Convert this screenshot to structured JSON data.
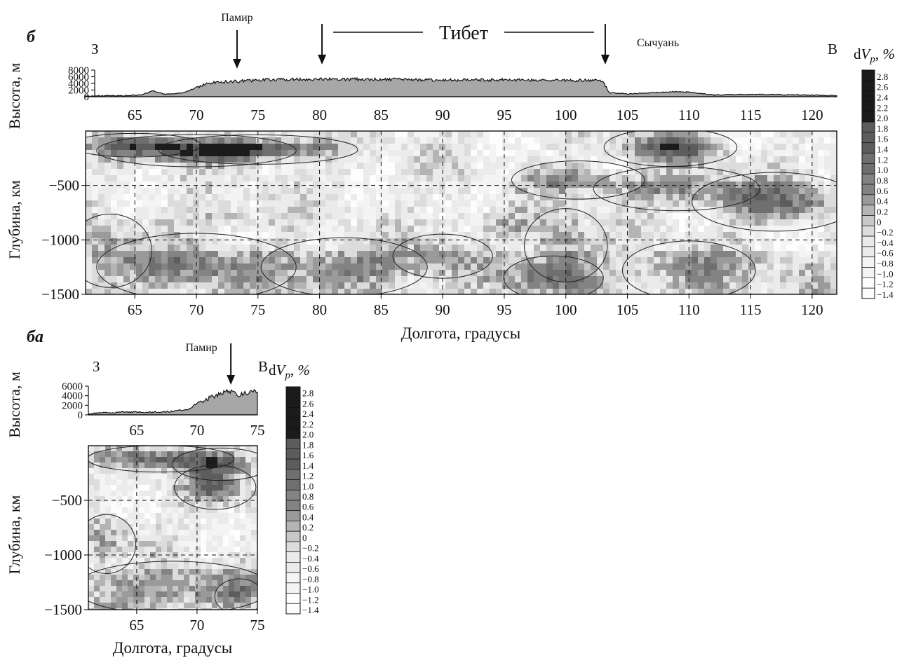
{
  "chart_data": [
    {
      "type": "heatmap",
      "panel_label": "б",
      "direction_west": "З",
      "direction_east": "В",
      "regions": {
        "pamir": {
          "label": "Памир",
          "lon": 73.3
        },
        "tibet": {
          "label": "Тибет",
          "from_lon": 80.2,
          "to_lon": 103.2
        },
        "sichuan": {
          "label": "Сычуань"
        }
      },
      "elevation": {
        "ylabel": "Высота, м",
        "ylim": [
          0,
          8000
        ],
        "yticks": [
          0,
          2000,
          4000,
          6000,
          8000
        ],
        "profile": [
          [
            61,
            200
          ],
          [
            64,
            300
          ],
          [
            65.5,
            500
          ],
          [
            66.5,
            1800
          ],
          [
            67.5,
            700
          ],
          [
            69,
            1200
          ],
          [
            69.8,
            2400
          ],
          [
            70.5,
            3500
          ],
          [
            71.5,
            4300
          ],
          [
            73,
            4600
          ],
          [
            76,
            5100
          ],
          [
            80,
            5300
          ],
          [
            85,
            5200
          ],
          [
            90,
            5000
          ],
          [
            95,
            5100
          ],
          [
            100,
            4900
          ],
          [
            103,
            4900
          ],
          [
            103.5,
            1200
          ],
          [
            105,
            800
          ],
          [
            107,
            1200
          ],
          [
            109,
            1500
          ],
          [
            110.5,
            1200
          ],
          [
            112,
            500
          ],
          [
            115,
            700
          ],
          [
            118,
            600
          ],
          [
            121,
            400
          ],
          [
            122,
            300
          ]
        ]
      },
      "xlabel": "Долгота, градусы",
      "ylabel": "Глубина, км",
      "xlim": [
        61,
        122
      ],
      "xticks": [
        65,
        70,
        75,
        80,
        85,
        90,
        95,
        100,
        105,
        110,
        115,
        120
      ],
      "ylim": [
        -1500,
        0
      ],
      "yticks": [
        -500,
        -1000,
        -1500
      ],
      "grid": "dashed",
      "colorbar_label": "dVp, %",
      "colorbar_ticks": [
        2.8,
        2.6,
        2.4,
        2.2,
        2.0,
        1.8,
        1.6,
        1.4,
        1.2,
        1.0,
        0.8,
        0.6,
        0.4,
        0.2,
        0,
        -0.2,
        -0.4,
        -0.6,
        -0.8,
        -1.0,
        -1.2,
        -1.4
      ],
      "anomalies": [
        {
          "lon": 70,
          "depth": -180,
          "rlon": 6,
          "rdepth": 110,
          "dvp": 1.4
        },
        {
          "lon": 75,
          "depth": -170,
          "rlon": 6,
          "rdepth": 100,
          "dvp": 1.5
        },
        {
          "lon": 65,
          "depth": -130,
          "rlon": 4,
          "rdepth": 80,
          "dvp": 0.9
        },
        {
          "lon": 108.5,
          "depth": -150,
          "rlon": 4,
          "rdepth": 130,
          "dvp": 1.6
        },
        {
          "lon": 101,
          "depth": -450,
          "rlon": 4,
          "rdepth": 130,
          "dvp": 0.8
        },
        {
          "lon": 117,
          "depth": -650,
          "rlon": 5,
          "rdepth": 200,
          "dvp": 1.1
        },
        {
          "lon": 109,
          "depth": -530,
          "rlon": 5,
          "rdepth": 150,
          "dvp": 0.8
        },
        {
          "lon": 100,
          "depth": -1050,
          "rlon": 2.5,
          "rdepth": 250,
          "dvp": 0.7
        },
        {
          "lon": 99,
          "depth": -1350,
          "rlon": 3,
          "rdepth": 150,
          "dvp": 0.8
        },
        {
          "lon": 82,
          "depth": -1250,
          "rlon": 5,
          "rdepth": 200,
          "dvp": 0.5
        },
        {
          "lon": 70,
          "depth": -1250,
          "rlon": 6,
          "rdepth": 230,
          "dvp": 0.4
        },
        {
          "lon": 63,
          "depth": -1100,
          "rlon": 2.5,
          "rdepth": 250,
          "dvp": 0.4
        },
        {
          "lon": 90,
          "depth": -1150,
          "rlon": 3,
          "rdepth": 150,
          "dvp": 0.3
        },
        {
          "lon": 110,
          "depth": -1280,
          "rlon": 4,
          "rdepth": 200,
          "dvp": 0.3
        },
        {
          "lon": 95,
          "depth": -850,
          "rlon": 4,
          "rdepth": 120,
          "dvp": 0.2
        },
        {
          "lon": 72,
          "depth": -800,
          "rlon": 4,
          "rdepth": 100,
          "dvp": 0.25
        }
      ]
    },
    {
      "type": "heatmap",
      "panel_label": "бa",
      "direction_west": "З",
      "direction_east": "В",
      "regions": {
        "pamir": {
          "label": "Памир",
          "lon": 72.8
        }
      },
      "elevation": {
        "ylabel": "Высота, м",
        "ylim": [
          0,
          6000
        ],
        "yticks": [
          0,
          2000,
          4000,
          6000
        ],
        "profile": [
          [
            61,
            200
          ],
          [
            62,
            400
          ],
          [
            64,
            600
          ],
          [
            66,
            500
          ],
          [
            68,
            700
          ],
          [
            69.3,
            1200
          ],
          [
            70,
            2400
          ],
          [
            71,
            3500
          ],
          [
            72.5,
            5000
          ],
          [
            73.5,
            4200
          ],
          [
            75,
            5000
          ]
        ]
      },
      "xlabel": "Долгота, градусы",
      "ylabel": "Глубина, км",
      "xlim": [
        61,
        75
      ],
      "xticks": [
        65,
        70,
        75
      ],
      "ylim": [
        -1500,
        0
      ],
      "yticks": [
        -500,
        -1000,
        -1500
      ],
      "grid": "dashed",
      "colorbar_label": "dVp, %",
      "colorbar_ticks": [
        2.8,
        2.6,
        2.4,
        2.2,
        2.0,
        1.8,
        1.6,
        1.4,
        1.2,
        1.0,
        0.8,
        0.6,
        0.4,
        0.2,
        0,
        -0.2,
        -0.4,
        -0.6,
        -0.8,
        -1.0,
        -1.2,
        -1.4
      ],
      "anomalies": [
        {
          "lon": 67,
          "depth": -120,
          "rlon": 4.5,
          "rdepth": 90,
          "dvp": 1.4
        },
        {
          "lon": 72,
          "depth": -170,
          "rlon": 3,
          "rdepth": 110,
          "dvp": 1.3
        },
        {
          "lon": 71.5,
          "depth": -380,
          "rlon": 2.5,
          "rdepth": 150,
          "dvp": 1.2
        },
        {
          "lon": 62.5,
          "depth": -900,
          "rlon": 1.8,
          "rdepth": 200,
          "dvp": 0.5
        },
        {
          "lon": 68,
          "depth": -1300,
          "rlon": 6,
          "rdepth": 180,
          "dvp": 0.4
        },
        {
          "lon": 73.5,
          "depth": -1380,
          "rlon": 1.5,
          "rdepth": 120,
          "dvp": 0.3
        }
      ]
    }
  ]
}
